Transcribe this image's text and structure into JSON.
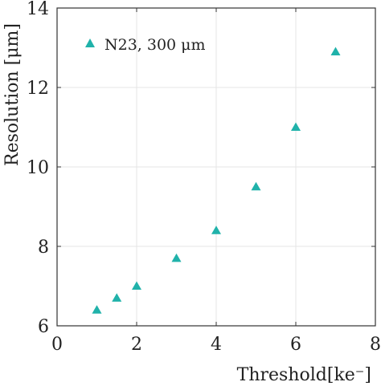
{
  "chart_data": {
    "type": "scatter",
    "xlabel": "Threshold[ke⁻]",
    "ylabel": "Resolution [μm]",
    "xlim": [
      0,
      8
    ],
    "ylim": [
      6,
      14
    ],
    "xticks": [
      "0",
      "2",
      "4",
      "6",
      "8"
    ],
    "yticks": [
      "6",
      "8",
      "10",
      "12",
      "14"
    ],
    "grid": true,
    "legend_position": "top-left",
    "series": [
      {
        "name": "N23, 300 μm",
        "marker": "triangle",
        "color": "#20b2aa",
        "x": [
          1,
          1.5,
          2,
          3,
          4,
          5,
          6,
          7
        ],
        "y": [
          6.4,
          6.7,
          7.0,
          7.7,
          8.4,
          9.5,
          11.0,
          12.9
        ]
      }
    ]
  }
}
